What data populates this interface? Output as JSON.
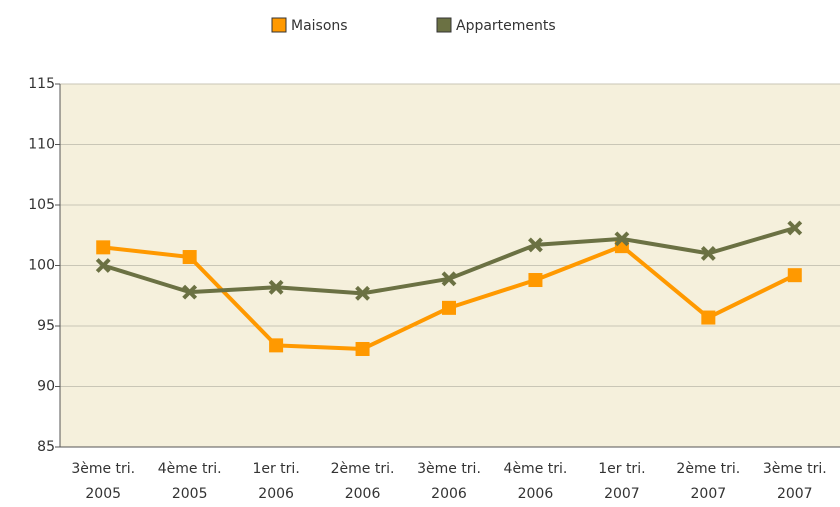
{
  "chart_data": {
    "type": "line",
    "categories": [
      [
        "3ème tri.",
        "2005"
      ],
      [
        "4ème tri.",
        "2005"
      ],
      [
        "1er tri.",
        "2006"
      ],
      [
        "2ème tri.",
        "2006"
      ],
      [
        "3ème tri.",
        "2006"
      ],
      [
        "4ème tri.",
        "2006"
      ],
      [
        "1er tri.",
        "2007"
      ],
      [
        "2ème tri.",
        "2007"
      ],
      [
        "3ème tri.",
        "2007"
      ]
    ],
    "series": [
      {
        "name": "Maisons",
        "color": "#ff9900",
        "marker": "square",
        "values": [
          101.5,
          100.7,
          93.4,
          93.1,
          96.5,
          98.8,
          101.6,
          95.7,
          99.2
        ]
      },
      {
        "name": "Appartements",
        "color": "#6b7143",
        "marker": "x",
        "values": [
          100.0,
          97.8,
          98.2,
          97.7,
          98.9,
          101.7,
          102.2,
          101.0,
          103.1
        ]
      }
    ],
    "ylim": [
      85,
      115
    ],
    "yticks": [
      85,
      90,
      95,
      100,
      105,
      110,
      115
    ],
    "grid": true,
    "legend": "top"
  }
}
